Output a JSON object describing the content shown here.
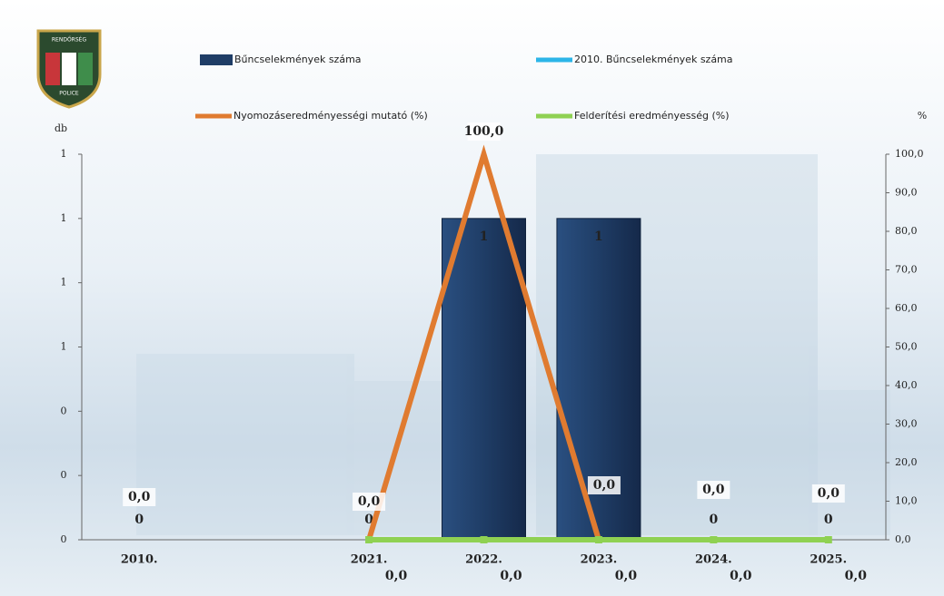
{
  "logo": {
    "top": "RENDŐRSÉG",
    "bottom": "POLICE"
  },
  "chart_data": {
    "type": "combo",
    "ylabel": "db",
    "y2label": "%",
    "categories": [
      "2010.",
      null,
      "2021.",
      "2022.",
      "2023.",
      "2024.",
      "2025."
    ],
    "ylim": [
      0,
      1.2
    ],
    "yticks": [
      {
        "value": 0,
        "label": "0"
      },
      {
        "value": 0.2,
        "label": "0"
      },
      {
        "value": 0.4,
        "label": "0"
      },
      {
        "value": 0.6,
        "label": "1"
      },
      {
        "value": 0.8,
        "label": "1"
      },
      {
        "value": 1.0,
        "label": "1"
      },
      {
        "value": 1.2,
        "label": "1"
      }
    ],
    "y2lim": [
      0,
      100
    ],
    "y2ticks": [
      {
        "value": 0,
        "label": "0,0"
      },
      {
        "value": 10,
        "label": "10,0"
      },
      {
        "value": 20,
        "label": "20,0"
      },
      {
        "value": 30,
        "label": "30,0"
      },
      {
        "value": 40,
        "label": "40,0"
      },
      {
        "value": 50,
        "label": "50,0"
      },
      {
        "value": 60,
        "label": "60,0"
      },
      {
        "value": 70,
        "label": "70,0"
      },
      {
        "value": 80,
        "label": "80,0"
      },
      {
        "value": 90,
        "label": "90,0"
      },
      {
        "value": 100,
        "label": "100,0"
      }
    ],
    "series": [
      {
        "name": "Bűncselekmények száma",
        "type": "bar",
        "color": "#1f3d66",
        "values": [
          0,
          null,
          0,
          1,
          1,
          0,
          0
        ]
      },
      {
        "name": "2010. Bűncselekmények száma",
        "type": "line",
        "color": "#2cb5e8",
        "values": [
          null,
          null,
          null,
          null,
          null,
          null,
          null
        ]
      },
      {
        "name": "Nyomozáseredményességi mutató (%)",
        "type": "line",
        "axis": "y2",
        "color": "#e07b30",
        "values": [
          0.0,
          null,
          0.0,
          100.0,
          0.0,
          0.0,
          0.0
        ],
        "value_labels": [
          "0,0",
          null,
          "0,0",
          "100,0",
          "0,0",
          "0,0",
          "0,0"
        ]
      },
      {
        "name": "Felderítési eredményesség (%)",
        "type": "line",
        "axis": "y2",
        "color": "#8fd152",
        "values": [
          null,
          null,
          0.0,
          0.0,
          0.0,
          0.0,
          0.0
        ],
        "value_labels": [
          null,
          null,
          "0,0",
          "0,0",
          "0,0",
          "0,0",
          "0,0"
        ]
      }
    ]
  }
}
